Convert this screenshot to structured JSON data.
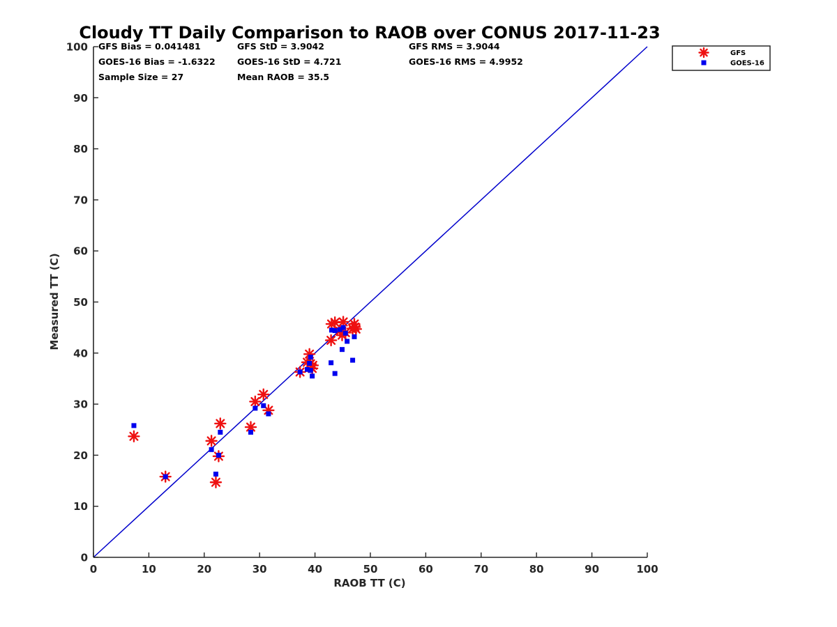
{
  "chart_data": {
    "type": "scatter",
    "title": "Cloudy TT Daily Comparison to RAOB over CONUS 2017-11-23",
    "xlabel": "RAOB TT (C)",
    "ylabel": "Measured TT (C)",
    "xlim": [
      0,
      100
    ],
    "ylim": [
      0,
      100
    ],
    "xticks": [
      "0",
      "10",
      "20",
      "30",
      "40",
      "50",
      "60",
      "70",
      "80",
      "90",
      "100"
    ],
    "yticks": [
      "0",
      "10",
      "20",
      "30",
      "40",
      "50",
      "60",
      "70",
      "80",
      "90",
      "100"
    ],
    "grid": false,
    "legend_position": "outside-top-right",
    "reference_line": {
      "x": [
        0,
        100
      ],
      "y": [
        0,
        100
      ],
      "color": "#0000cc"
    },
    "stats": [
      [
        "GFS Bias = 0.041481",
        "GFS StD = 3.9042",
        "GFS RMS = 3.9044"
      ],
      [
        "GOES-16 Bias = -1.6322",
        "GOES-16 StD = 4.721",
        "GOES-16 RMS = 4.9952"
      ],
      [
        "Sample Size = 27",
        "Mean RAOB = 35.5",
        ""
      ]
    ],
    "series": [
      {
        "name": "GFS",
        "marker": "asterisk",
        "color": "#ee1111",
        "points": [
          [
            7.3,
            23.7
          ],
          [
            13.0,
            15.8
          ],
          [
            21.3,
            22.8
          ],
          [
            22.1,
            14.7
          ],
          [
            22.6,
            19.8
          ],
          [
            22.9,
            26.2
          ],
          [
            28.4,
            25.5
          ],
          [
            29.2,
            30.5
          ],
          [
            30.7,
            31.9
          ],
          [
            31.6,
            28.8
          ],
          [
            37.3,
            36.3
          ],
          [
            38.6,
            38.2
          ],
          [
            39.0,
            39.8
          ],
          [
            39.2,
            37.9
          ],
          [
            39.5,
            37.0
          ],
          [
            42.9,
            42.5
          ],
          [
            43.0,
            45.7
          ],
          [
            43.6,
            46.0
          ],
          [
            44.5,
            44.3
          ],
          [
            44.9,
            43.5
          ],
          [
            45.1,
            46.1
          ],
          [
            45.5,
            44.0
          ],
          [
            46.8,
            44.8
          ],
          [
            47.1,
            45.7
          ],
          [
            47.4,
            44.7
          ],
          [
            47.2,
            45.1
          ],
          [
            39.6,
            37.6
          ]
        ]
      },
      {
        "name": "GOES-16",
        "marker": "square",
        "color": "#0000ee",
        "points": [
          [
            7.3,
            25.8
          ],
          [
            13.0,
            15.8
          ],
          [
            21.3,
            21.1
          ],
          [
            22.1,
            16.3
          ],
          [
            22.6,
            20.0
          ],
          [
            22.9,
            24.5
          ],
          [
            28.4,
            24.5
          ],
          [
            29.2,
            29.2
          ],
          [
            30.7,
            29.7
          ],
          [
            31.6,
            28.1
          ],
          [
            37.3,
            36.3
          ],
          [
            38.6,
            36.8
          ],
          [
            39.0,
            38.0
          ],
          [
            39.2,
            39.2
          ],
          [
            39.5,
            35.5
          ],
          [
            42.9,
            38.1
          ],
          [
            43.0,
            44.5
          ],
          [
            43.6,
            36.0
          ],
          [
            43.6,
            44.4
          ],
          [
            44.5,
            44.6
          ],
          [
            44.9,
            40.7
          ],
          [
            45.1,
            45.0
          ],
          [
            45.5,
            43.9
          ],
          [
            45.8,
            42.3
          ],
          [
            46.8,
            38.6
          ],
          [
            47.1,
            43.2
          ],
          [
            39.2,
            36.6
          ]
        ]
      }
    ]
  }
}
